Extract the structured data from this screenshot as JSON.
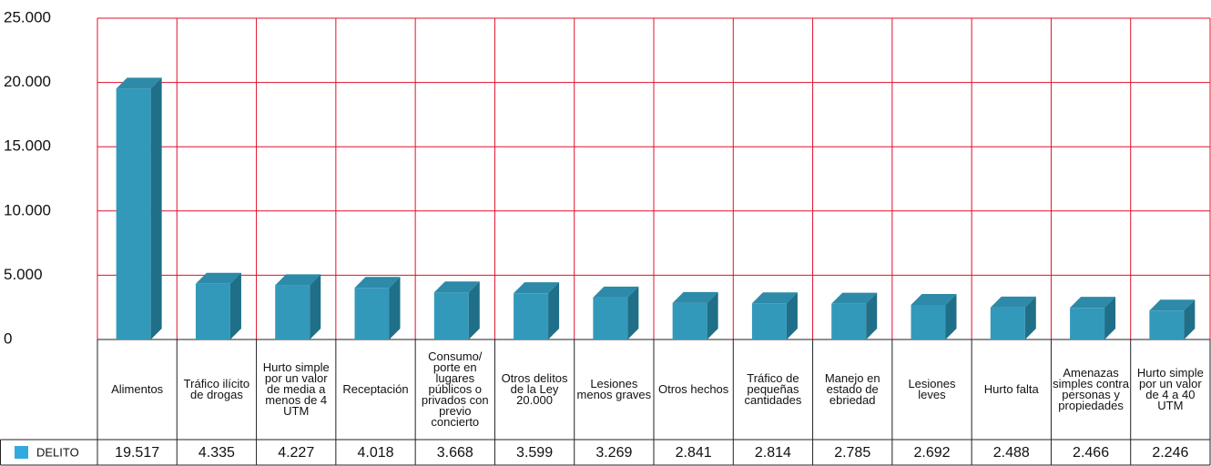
{
  "chart_data": {
    "type": "bar3d",
    "categories": [
      "Alimentos",
      "Tráfico ilícito de drogas",
      "Hurto simple por un valor de media a menos de 4 UTM",
      "Receptación",
      "Consumo/ porte en lugares públicos o privados con previo concierto",
      "Otros delitos de la Ley 20.000",
      "Lesiones menos graves",
      "Otros hechos",
      "Tráfico de pequeñas cantidades",
      "Manejo en estado de ebriedad",
      "Lesiones leves",
      "Hurto falta",
      "Amenazas simples contra personas y propiedades",
      "Hurto simple por un valor de 4 a 40 UTM"
    ],
    "series": [
      {
        "name": "DELITO",
        "color": "#3399bb",
        "values": [
          19517,
          4335,
          4227,
          4018,
          3668,
          3599,
          3269,
          2841,
          2814,
          2785,
          2692,
          2488,
          2466,
          2246
        ],
        "value_labels": [
          "19.517",
          "4.335",
          "4.227",
          "4.018",
          "3.668",
          "3.599",
          "3.269",
          "2.841",
          "2.814",
          "2.785",
          "2.692",
          "2.488",
          "2.466",
          "2.246"
        ]
      }
    ],
    "ylim": [
      0,
      25000
    ],
    "yticks": [
      0,
      {
        "value": 5000,
        "label": "5.000"
      },
      {
        "value": 10000,
        "label": "10.000"
      },
      {
        "value": 15000,
        "label": "15.000"
      },
      {
        "value": 20000,
        "label": "20.000"
      },
      {
        "value": 25000,
        "label": "25.000"
      }
    ],
    "grid": true,
    "grid_color": "#e0102a"
  }
}
